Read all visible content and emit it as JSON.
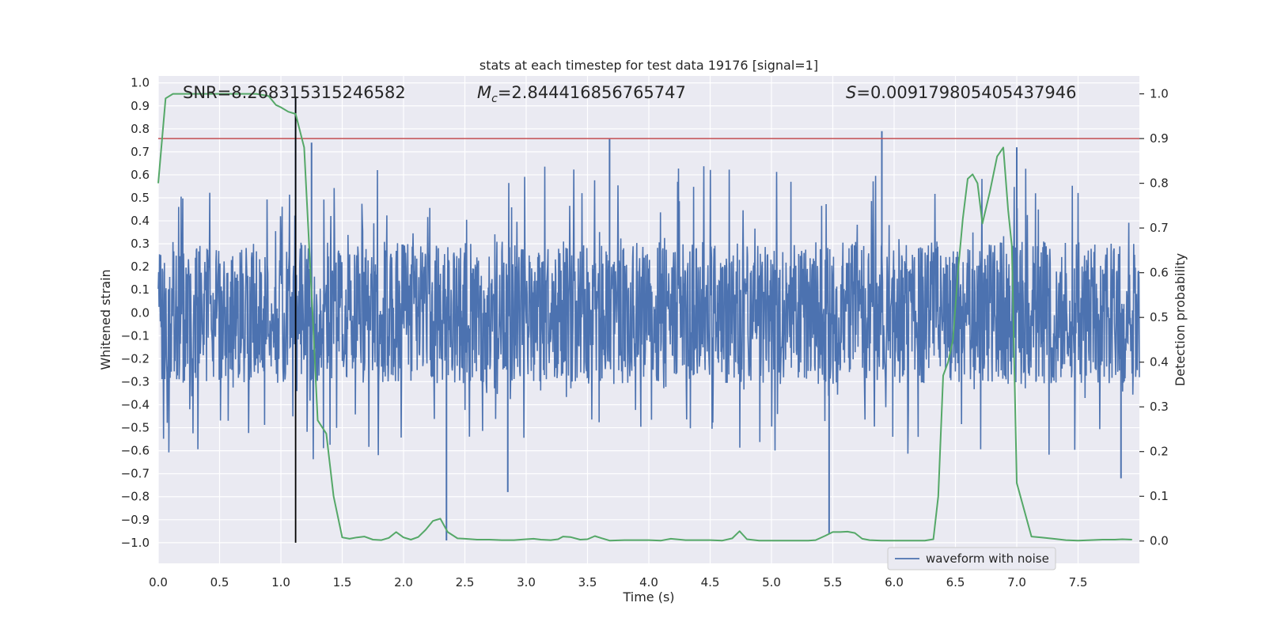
{
  "chart_data": {
    "type": "line",
    "title": "stats at each timestep for test data 19176 [signal=1]",
    "xlabel": "Time (s)",
    "ylabel_left": "Whitened strain",
    "ylabel_right": "Detection probability",
    "xlim": [
      0.0,
      8.0
    ],
    "ylim_left": [
      -1.09,
      1.03
    ],
    "ylim_right": [
      -0.05,
      1.04
    ],
    "x_ticks": [
      "0.0",
      "0.5",
      "1.0",
      "1.5",
      "2.0",
      "2.5",
      "3.0",
      "3.5",
      "4.0",
      "4.5",
      "5.0",
      "5.5",
      "6.0",
      "6.5",
      "7.0",
      "7.5"
    ],
    "y_ticks_left": [
      "1.0",
      "0.9",
      "0.8",
      "0.7",
      "0.6",
      "0.5",
      "0.4",
      "0.3",
      "0.2",
      "0.1",
      "0.0",
      "−0.1",
      "−0.2",
      "−0.3",
      "−0.4",
      "−0.5",
      "−0.6",
      "−0.7",
      "−0.8",
      "−0.9",
      "−1.0"
    ],
    "y_ticks_right": [
      "1.0",
      "0.9",
      "0.8",
      "0.7",
      "0.6",
      "0.5",
      "0.4",
      "0.3",
      "0.2",
      "0.1",
      "0.0"
    ],
    "grid": true,
    "legend": {
      "position": "lower-right",
      "entries": [
        "waveform with noise"
      ]
    },
    "annotations": {
      "snr": "SNR=8.268315315246582",
      "mc_symbol": "M",
      "mc_subscript": "c",
      "mc_value": "=2.844416856765747",
      "s_symbol": "S",
      "s_value": "=0.009179805405437946"
    },
    "threshold_line": {
      "axis": "right",
      "y": 0.9,
      "color": "#c44e52"
    },
    "event_marker": {
      "x": 1.12,
      "y_range": [
        -1.0,
        0.94
      ],
      "color": "#000000"
    },
    "series": [
      {
        "name": "waveform with noise",
        "axis": "left",
        "color": "#4c72b0",
        "envelope_typical": [
          -0.35,
          0.35
        ],
        "notable_spikes": [
          {
            "x": 1.12,
            "y": 0.94
          },
          {
            "x": 1.25,
            "y": 0.74
          },
          {
            "x": 2.35,
            "y": -0.99
          },
          {
            "x": 2.85,
            "y": -0.78
          },
          {
            "x": 3.68,
            "y": 0.76
          },
          {
            "x": 5.47,
            "y": -0.96
          },
          {
            "x": 5.9,
            "y": 0.79
          },
          {
            "x": 7.0,
            "y": 0.72
          },
          {
            "x": 7.85,
            "y": -0.72
          }
        ]
      },
      {
        "name": "",
        "axis": "right",
        "color": "#55a868",
        "x": [
          0.0,
          0.06,
          0.12,
          0.2,
          0.3,
          0.4,
          0.5,
          0.6,
          0.7,
          0.8,
          0.9,
          0.96,
          1.0,
          1.06,
          1.12,
          1.19,
          1.26,
          1.3,
          1.37,
          1.43,
          1.5,
          1.56,
          1.62,
          1.68,
          1.75,
          1.82,
          1.88,
          1.94,
          2.0,
          2.06,
          2.12,
          2.18,
          2.24,
          2.3,
          2.36,
          2.44,
          2.5,
          2.6,
          2.7,
          2.8,
          2.9,
          3.0,
          3.06,
          3.12,
          3.2,
          3.26,
          3.3,
          3.36,
          3.44,
          3.5,
          3.56,
          3.62,
          3.68,
          3.8,
          3.9,
          4.0,
          4.1,
          4.18,
          4.3,
          4.4,
          4.5,
          4.6,
          4.68,
          4.74,
          4.8,
          4.9,
          5.0,
          5.1,
          5.2,
          5.3,
          5.36,
          5.44,
          5.5,
          5.56,
          5.62,
          5.68,
          5.74,
          5.8,
          5.9,
          6.0,
          6.1,
          6.2,
          6.25,
          6.32,
          6.36,
          6.4,
          6.44,
          6.48,
          6.52,
          6.56,
          6.6,
          6.64,
          6.68,
          6.72,
          6.78,
          6.84,
          6.89,
          6.93,
          6.96,
          7.0,
          7.06,
          7.12,
          7.2,
          7.3,
          7.4,
          7.5,
          7.6,
          7.7,
          7.8,
          7.86,
          7.94
        ],
        "values": [
          0.8,
          0.99,
          1.0,
          1.0,
          1.0,
          1.0,
          1.0,
          1.0,
          1.0,
          1.0,
          0.995,
          0.975,
          0.97,
          0.96,
          0.955,
          0.88,
          0.5,
          0.27,
          0.24,
          0.1,
          0.008,
          0.005,
          0.008,
          0.01,
          0.003,
          0.002,
          0.007,
          0.02,
          0.008,
          0.003,
          0.009,
          0.025,
          0.045,
          0.05,
          0.02,
          0.006,
          0.005,
          0.003,
          0.003,
          0.002,
          0.002,
          0.004,
          0.005,
          0.003,
          0.002,
          0.004,
          0.01,
          0.009,
          0.003,
          0.004,
          0.011,
          0.006,
          0.001,
          0.002,
          0.002,
          0.002,
          0.001,
          0.005,
          0.002,
          0.002,
          0.002,
          0.001,
          0.006,
          0.022,
          0.004,
          0.001,
          0.001,
          0.001,
          0.001,
          0.001,
          0.002,
          0.012,
          0.02,
          0.02,
          0.021,
          0.018,
          0.005,
          0.002,
          0.001,
          0.001,
          0.001,
          0.001,
          0.001,
          0.004,
          0.1,
          0.37,
          0.4,
          0.45,
          0.6,
          0.72,
          0.81,
          0.82,
          0.8,
          0.71,
          0.78,
          0.86,
          0.88,
          0.74,
          0.66,
          0.13,
          0.07,
          0.01,
          0.008,
          0.005,
          0.002,
          0.001,
          0.002,
          0.003,
          0.003,
          0.004,
          0.003
        ]
      }
    ]
  }
}
